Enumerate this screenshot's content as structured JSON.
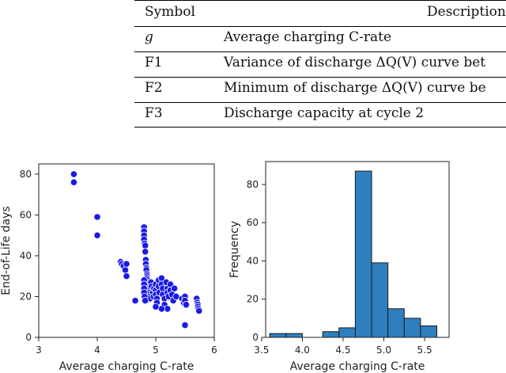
{
  "table": {
    "headers": {
      "symbol": "Symbol",
      "description": "Description"
    },
    "rows": [
      {
        "symbol": "g",
        "description": "Average charging C-rate"
      },
      {
        "symbol": "F1",
        "description": "Variance of discharge ΔQ(V) curve bet"
      },
      {
        "symbol": "F2",
        "description": "Minimum of discharge ΔQ(V) curve be"
      },
      {
        "symbol": "F3",
        "description": "Discharge capacity at cycle 2"
      }
    ]
  },
  "chart_data": [
    {
      "type": "scatter",
      "xlabel": "Average charging C-rate",
      "ylabel": "End-of-Life days",
      "xlim": [
        3,
        6
      ],
      "ylim": [
        0,
        85
      ],
      "xticks": [
        "3",
        "4",
        "5",
        "6"
      ],
      "yticks": [
        "0",
        "20",
        "40",
        "60",
        "80"
      ],
      "color": "#1a1ae6",
      "points": [
        [
          3.6,
          80
        ],
        [
          3.6,
          76
        ],
        [
          4.0,
          59
        ],
        [
          4.0,
          50
        ],
        [
          4.4,
          37
        ],
        [
          4.42,
          36
        ],
        [
          4.45,
          35
        ],
        [
          4.48,
          33
        ],
        [
          4.5,
          36
        ],
        [
          4.5,
          30
        ],
        [
          4.65,
          18
        ],
        [
          4.8,
          54
        ],
        [
          4.8,
          52
        ],
        [
          4.8,
          50
        ],
        [
          4.8,
          48
        ],
        [
          4.81,
          46
        ],
        [
          4.82,
          45
        ],
        [
          4.82,
          42
        ],
        [
          4.83,
          38
        ],
        [
          4.83,
          36
        ],
        [
          4.84,
          34
        ],
        [
          4.84,
          33
        ],
        [
          4.85,
          31
        ],
        [
          4.85,
          30
        ],
        [
          4.85,
          29
        ],
        [
          4.86,
          28
        ],
        [
          4.86,
          27
        ],
        [
          4.87,
          26
        ],
        [
          4.87,
          25
        ],
        [
          4.88,
          24
        ],
        [
          4.88,
          23
        ],
        [
          4.89,
          22
        ],
        [
          4.89,
          21
        ],
        [
          4.9,
          20
        ],
        [
          4.9,
          19
        ],
        [
          4.8,
          28
        ],
        [
          4.8,
          26
        ],
        [
          4.8,
          24
        ],
        [
          4.8,
          22
        ],
        [
          4.81,
          20
        ],
        [
          4.82,
          18
        ],
        [
          4.92,
          27
        ],
        [
          4.93,
          25
        ],
        [
          4.95,
          22
        ],
        [
          4.96,
          20
        ],
        [
          4.97,
          24
        ],
        [
          5.0,
          26
        ],
        [
          5.0,
          23
        ],
        [
          5.0,
          21
        ],
        [
          5.02,
          19
        ],
        [
          5.02,
          17
        ],
        [
          5.05,
          28
        ],
        [
          5.05,
          25
        ],
        [
          5.06,
          22
        ],
        [
          5.1,
          29
        ],
        [
          5.1,
          26
        ],
        [
          5.12,
          24
        ],
        [
          5.12,
          21
        ],
        [
          5.15,
          19
        ],
        [
          5.15,
          16
        ],
        [
          5.18,
          27
        ],
        [
          5.2,
          24
        ],
        [
          5.2,
          22
        ],
        [
          5.22,
          20
        ],
        [
          5.25,
          26
        ],
        [
          5.25,
          23
        ],
        [
          5.28,
          21
        ],
        [
          5.3,
          18
        ],
        [
          5.32,
          24
        ],
        [
          5.35,
          20
        ],
        [
          5.2,
          14
        ],
        [
          5.1,
          14
        ],
        [
          5.0,
          15
        ],
        [
          5.45,
          19
        ],
        [
          5.48,
          17
        ],
        [
          5.5,
          20
        ],
        [
          5.5,
          18
        ],
        [
          5.52,
          16
        ],
        [
          5.5,
          6
        ],
        [
          5.7,
          19
        ],
        [
          5.71,
          17
        ],
        [
          5.72,
          16
        ],
        [
          5.72,
          15
        ],
        [
          5.73,
          14
        ],
        [
          5.74,
          13
        ]
      ]
    },
    {
      "type": "bar",
      "subtype": "histogram",
      "xlabel": "Average charging C-rate",
      "ylabel": "Frequency",
      "xlim": [
        3.55,
        5.8
      ],
      "ylim": [
        0,
        92
      ],
      "xticks": [
        "3.5",
        "4.0",
        "4.5",
        "5.0",
        "5.5"
      ],
      "yticks": [
        "0",
        "20",
        "40",
        "60",
        "80"
      ],
      "color": "#2f7fbf",
      "bins": [
        {
          "x0": 3.6,
          "x1": 3.8,
          "value": 2
        },
        {
          "x0": 3.8,
          "x1": 4.0,
          "value": 2
        },
        {
          "x0": 4.0,
          "x1": 4.25,
          "value": 0
        },
        {
          "x0": 4.25,
          "x1": 4.45,
          "value": 3
        },
        {
          "x0": 4.45,
          "x1": 4.65,
          "value": 5
        },
        {
          "x0": 4.65,
          "x1": 4.85,
          "value": 87
        },
        {
          "x0": 4.85,
          "x1": 5.05,
          "value": 39
        },
        {
          "x0": 5.05,
          "x1": 5.25,
          "value": 15
        },
        {
          "x0": 5.25,
          "x1": 5.45,
          "value": 10
        },
        {
          "x0": 5.45,
          "x1": 5.65,
          "value": 6
        }
      ]
    }
  ]
}
